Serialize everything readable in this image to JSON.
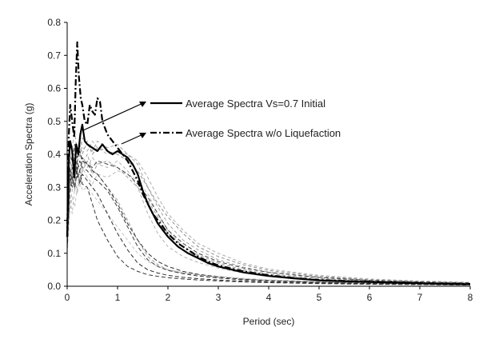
{
  "chart_data": {
    "type": "line",
    "title": "",
    "xlabel": "Period (sec)",
    "ylabel": "Acceleration Spectra  (g)",
    "xlim": [
      0,
      8
    ],
    "ylim": [
      0,
      0.8
    ],
    "x_ticks": [
      "0",
      "1",
      "2",
      "3",
      "4",
      "5",
      "6",
      "7",
      "8"
    ],
    "y_ticks": [
      "0.0",
      "0.1",
      "0.2",
      "0.3",
      "0.4",
      "0.5",
      "0.6",
      "0.7",
      "0.8"
    ],
    "grid": false,
    "legend": [
      {
        "label": "Average Spectra Vs=0.7 Initial",
        "style": "solid"
      },
      {
        "label": "Average Spectra w/o Liquefaction",
        "style": "dash-dot"
      }
    ],
    "series": [
      {
        "name": "Average Spectra Vs=0.7 Initial",
        "style": "solid",
        "color": "#000000",
        "x": [
          0,
          0.03,
          0.06,
          0.1,
          0.14,
          0.18,
          0.22,
          0.26,
          0.3,
          0.35,
          0.4,
          0.5,
          0.6,
          0.7,
          0.8,
          0.9,
          1.0,
          1.1,
          1.2,
          1.3,
          1.4,
          1.5,
          1.6,
          1.7,
          1.8,
          1.9,
          2.0,
          2.2,
          2.4,
          2.6,
          2.8,
          3.0,
          3.5,
          4.0,
          4.5,
          5.0,
          5.5,
          6.0,
          6.5,
          7.0,
          7.5,
          8.0
        ],
        "y": [
          0.15,
          0.38,
          0.44,
          0.41,
          0.33,
          0.43,
          0.4,
          0.46,
          0.49,
          0.44,
          0.43,
          0.42,
          0.41,
          0.43,
          0.41,
          0.4,
          0.41,
          0.4,
          0.39,
          0.37,
          0.34,
          0.29,
          0.25,
          0.22,
          0.19,
          0.17,
          0.15,
          0.12,
          0.1,
          0.085,
          0.07,
          0.06,
          0.042,
          0.031,
          0.024,
          0.018,
          0.015,
          0.013,
          0.011,
          0.009,
          0.007,
          0.006
        ]
      },
      {
        "name": "Average Spectra w/o Liquefaction",
        "style": "dash-dot",
        "color": "#000000",
        "x": [
          0,
          0.03,
          0.06,
          0.1,
          0.14,
          0.17,
          0.2,
          0.23,
          0.27,
          0.3,
          0.35,
          0.4,
          0.45,
          0.5,
          0.55,
          0.6,
          0.65,
          0.7,
          0.8,
          0.9,
          1.0,
          1.1,
          1.2,
          1.3,
          1.4,
          1.5,
          1.6,
          1.7,
          1.8,
          1.9,
          2.0,
          2.2,
          2.4,
          2.6,
          2.8,
          3.0,
          3.5,
          4.0,
          4.5,
          5.0,
          5.5,
          6.0,
          6.5,
          7.0,
          7.5,
          8.0
        ],
        "y": [
          0.15,
          0.45,
          0.55,
          0.5,
          0.45,
          0.62,
          0.74,
          0.64,
          0.57,
          0.55,
          0.5,
          0.49,
          0.55,
          0.53,
          0.52,
          0.57,
          0.56,
          0.5,
          0.46,
          0.44,
          0.42,
          0.4,
          0.38,
          0.35,
          0.32,
          0.28,
          0.25,
          0.22,
          0.2,
          0.18,
          0.16,
          0.13,
          0.11,
          0.09,
          0.075,
          0.063,
          0.045,
          0.033,
          0.025,
          0.019,
          0.016,
          0.014,
          0.012,
          0.01,
          0.008,
          0.007
        ]
      },
      {
        "style": "dashed-light",
        "color": "#9a9a9a",
        "x": [
          0,
          0.05,
          0.1,
          0.15,
          0.2,
          0.25,
          0.3,
          0.4,
          0.5,
          0.6,
          0.8,
          1.0,
          1.2,
          1.4,
          1.6,
          1.8,
          2.0,
          2.3,
          2.6,
          3.0,
          3.5,
          4.0,
          5.0,
          6.0,
          7.0,
          8.0
        ],
        "y": [
          0.12,
          0.3,
          0.36,
          0.31,
          0.38,
          0.41,
          0.37,
          0.4,
          0.35,
          0.34,
          0.3,
          0.26,
          0.2,
          0.14,
          0.09,
          0.065,
          0.05,
          0.04,
          0.034,
          0.028,
          0.022,
          0.018,
          0.013,
          0.01,
          0.007,
          0.005
        ]
      },
      {
        "style": "dashed-light",
        "color": "#b0b0b0",
        "x": [
          0,
          0.05,
          0.1,
          0.15,
          0.2,
          0.25,
          0.3,
          0.4,
          0.5,
          0.6,
          0.8,
          1.0,
          1.2,
          1.4,
          1.6,
          1.8,
          2.0,
          2.3,
          2.6,
          3.0,
          3.5,
          4.0,
          5.0,
          6.0,
          7.0,
          8.0
        ],
        "y": [
          0.1,
          0.24,
          0.29,
          0.33,
          0.28,
          0.34,
          0.38,
          0.36,
          0.39,
          0.37,
          0.36,
          0.38,
          0.35,
          0.3,
          0.22,
          0.16,
          0.12,
          0.09,
          0.072,
          0.055,
          0.04,
          0.03,
          0.02,
          0.014,
          0.01,
          0.008
        ]
      },
      {
        "style": "dashed-light",
        "color": "#a0a0a0",
        "x": [
          0,
          0.05,
          0.1,
          0.15,
          0.2,
          0.25,
          0.3,
          0.4,
          0.5,
          0.6,
          0.8,
          1.0,
          1.2,
          1.4,
          1.6,
          1.8,
          2.0,
          2.3,
          2.6,
          3.0,
          3.5,
          4.0,
          5.0,
          6.0,
          7.0,
          8.0
        ],
        "y": [
          0.13,
          0.35,
          0.4,
          0.36,
          0.42,
          0.39,
          0.45,
          0.43,
          0.41,
          0.44,
          0.42,
          0.43,
          0.4,
          0.37,
          0.3,
          0.24,
          0.19,
          0.14,
          0.11,
          0.08,
          0.058,
          0.043,
          0.027,
          0.018,
          0.013,
          0.01
        ]
      },
      {
        "style": "dashed-light",
        "color": "#bcbcbc",
        "x": [
          0,
          0.05,
          0.1,
          0.15,
          0.2,
          0.25,
          0.3,
          0.4,
          0.5,
          0.6,
          0.8,
          1.0,
          1.2,
          1.4,
          1.6,
          1.8,
          2.0,
          2.3,
          2.6,
          3.0,
          3.5,
          4.0,
          5.0,
          6.0,
          7.0,
          8.0
        ],
        "y": [
          0.11,
          0.27,
          0.22,
          0.3,
          0.34,
          0.3,
          0.36,
          0.33,
          0.31,
          0.34,
          0.33,
          0.35,
          0.34,
          0.32,
          0.28,
          0.22,
          0.17,
          0.12,
          0.09,
          0.065,
          0.047,
          0.035,
          0.022,
          0.015,
          0.011,
          0.008
        ]
      },
      {
        "style": "dashed-light",
        "color": "#8c8c8c",
        "x": [
          0,
          0.05,
          0.1,
          0.15,
          0.2,
          0.25,
          0.3,
          0.4,
          0.5,
          0.6,
          0.8,
          1.0,
          1.2,
          1.4,
          1.6,
          1.8,
          2.0,
          2.3,
          2.6,
          3.0,
          3.5,
          4.0,
          5.0,
          6.0,
          7.0,
          8.0
        ],
        "y": [
          0.14,
          0.33,
          0.38,
          0.42,
          0.37,
          0.43,
          0.4,
          0.44,
          0.4,
          0.42,
          0.41,
          0.4,
          0.38,
          0.35,
          0.3,
          0.25,
          0.21,
          0.16,
          0.12,
          0.09,
          0.065,
          0.048,
          0.03,
          0.02,
          0.014,
          0.011
        ]
      },
      {
        "style": "dashed-light",
        "color": "#c4c4c4",
        "x": [
          0,
          0.05,
          0.1,
          0.15,
          0.2,
          0.25,
          0.3,
          0.4,
          0.5,
          0.6,
          0.8,
          1.0,
          1.2,
          1.4,
          1.6,
          1.8,
          2.0,
          2.3,
          2.6,
          3.0,
          3.5,
          4.0,
          5.0,
          6.0,
          7.0,
          8.0
        ],
        "y": [
          0.1,
          0.22,
          0.27,
          0.24,
          0.3,
          0.33,
          0.29,
          0.3,
          0.28,
          0.26,
          0.22,
          0.18,
          0.14,
          0.1,
          0.075,
          0.06,
          0.05,
          0.042,
          0.036,
          0.03,
          0.024,
          0.02,
          0.014,
          0.01,
          0.008,
          0.006
        ]
      },
      {
        "style": "dashed-light",
        "color": "#999999",
        "x": [
          0,
          0.05,
          0.1,
          0.15,
          0.2,
          0.25,
          0.3,
          0.4,
          0.5,
          0.6,
          0.8,
          1.0,
          1.2,
          1.4,
          1.6,
          1.8,
          2.0,
          2.3,
          2.6,
          3.0,
          3.5,
          4.0,
          5.0,
          6.0,
          7.0,
          8.0
        ],
        "y": [
          0.12,
          0.31,
          0.34,
          0.29,
          0.36,
          0.32,
          0.35,
          0.38,
          0.34,
          0.37,
          0.38,
          0.36,
          0.33,
          0.3,
          0.26,
          0.21,
          0.16,
          0.12,
          0.095,
          0.07,
          0.05,
          0.037,
          0.024,
          0.016,
          0.012,
          0.009
        ]
      },
      {
        "style": "dashed-light",
        "color": "#acacac",
        "x": [
          0,
          0.05,
          0.1,
          0.15,
          0.2,
          0.25,
          0.3,
          0.4,
          0.5,
          0.6,
          0.8,
          1.0,
          1.2,
          1.4,
          1.6,
          1.8,
          2.0,
          2.3,
          2.6,
          3.0,
          3.5,
          4.0,
          5.0,
          6.0,
          7.0,
          8.0
        ],
        "y": [
          0.13,
          0.37,
          0.42,
          0.47,
          0.4,
          0.45,
          0.42,
          0.41,
          0.44,
          0.42,
          0.4,
          0.41,
          0.4,
          0.38,
          0.33,
          0.27,
          0.22,
          0.17,
          0.13,
          0.1,
          0.07,
          0.052,
          0.033,
          0.022,
          0.016,
          0.012
        ]
      },
      {
        "style": "dashed-dark",
        "color": "#333333",
        "x": [
          0,
          0.05,
          0.1,
          0.15,
          0.2,
          0.25,
          0.3,
          0.4,
          0.5,
          0.6,
          0.8,
          1.0,
          1.2,
          1.4,
          1.6,
          1.8,
          2.0,
          2.3,
          2.6,
          3.0,
          3.5,
          4.0,
          5.0,
          6.0,
          7.0,
          8.0
        ],
        "y": [
          0.12,
          0.34,
          0.3,
          0.37,
          0.33,
          0.35,
          0.31,
          0.3,
          0.25,
          0.2,
          0.14,
          0.09,
          0.06,
          0.045,
          0.035,
          0.03,
          0.026,
          0.022,
          0.019,
          0.016,
          0.013,
          0.011,
          0.008,
          0.006,
          0.005,
          0.004
        ]
      },
      {
        "style": "dashed-dark",
        "color": "#2a2a2a",
        "x": [
          0,
          0.05,
          0.1,
          0.15,
          0.2,
          0.25,
          0.3,
          0.4,
          0.5,
          0.6,
          0.8,
          1.0,
          1.2,
          1.4,
          1.6,
          1.8,
          2.0,
          2.3,
          2.6,
          3.0,
          3.5,
          4.0,
          5.0,
          6.0,
          7.0,
          8.0
        ],
        "y": [
          0.11,
          0.28,
          0.33,
          0.3,
          0.35,
          0.31,
          0.34,
          0.32,
          0.3,
          0.28,
          0.22,
          0.16,
          0.11,
          0.07,
          0.05,
          0.04,
          0.033,
          0.027,
          0.023,
          0.019,
          0.015,
          0.012,
          0.009,
          0.007,
          0.005,
          0.004
        ]
      },
      {
        "style": "dashed-dark",
        "color": "#3a3a3a",
        "x": [
          0,
          0.05,
          0.1,
          0.15,
          0.2,
          0.25,
          0.3,
          0.4,
          0.5,
          0.6,
          0.8,
          1.0,
          1.2,
          1.4,
          1.6,
          1.8,
          2.0,
          2.3,
          2.6,
          3.0,
          3.5,
          4.0,
          5.0,
          6.0,
          7.0,
          8.0
        ],
        "y": [
          0.13,
          0.36,
          0.32,
          0.4,
          0.35,
          0.38,
          0.36,
          0.35,
          0.33,
          0.32,
          0.29,
          0.24,
          0.18,
          0.12,
          0.08,
          0.06,
          0.048,
          0.038,
          0.031,
          0.025,
          0.019,
          0.015,
          0.011,
          0.008,
          0.006,
          0.005
        ]
      },
      {
        "style": "dashed-dark",
        "color": "#444444",
        "x": [
          0,
          0.05,
          0.1,
          0.15,
          0.2,
          0.25,
          0.3,
          0.4,
          0.5,
          0.6,
          0.8,
          1.0,
          1.2,
          1.4,
          1.6,
          1.8,
          2.0,
          2.3,
          2.6,
          3.0,
          3.5,
          4.0,
          5.0,
          6.0,
          7.0,
          8.0
        ],
        "y": [
          0.12,
          0.32,
          0.36,
          0.33,
          0.38,
          0.35,
          0.39,
          0.37,
          0.36,
          0.38,
          0.37,
          0.36,
          0.34,
          0.31,
          0.27,
          0.22,
          0.17,
          0.13,
          0.1,
          0.075,
          0.055,
          0.042,
          0.027,
          0.018,
          0.013,
          0.01
        ]
      },
      {
        "style": "dashed-dark",
        "color": "#303030",
        "x": [
          0,
          0.05,
          0.1,
          0.15,
          0.2,
          0.25,
          0.3,
          0.4,
          0.5,
          0.6,
          0.8,
          1.0,
          1.2,
          1.4,
          1.6,
          1.8,
          2.0,
          2.3,
          2.6,
          3.0,
          3.5,
          4.0,
          5.0,
          6.0,
          7.0,
          8.0
        ],
        "y": [
          0.14,
          0.4,
          0.38,
          0.43,
          0.39,
          0.41,
          0.38,
          0.37,
          0.35,
          0.34,
          0.3,
          0.25,
          0.19,
          0.14,
          0.1,
          0.075,
          0.06,
          0.045,
          0.036,
          0.028,
          0.021,
          0.017,
          0.012,
          0.009,
          0.007,
          0.005
        ]
      }
    ]
  }
}
